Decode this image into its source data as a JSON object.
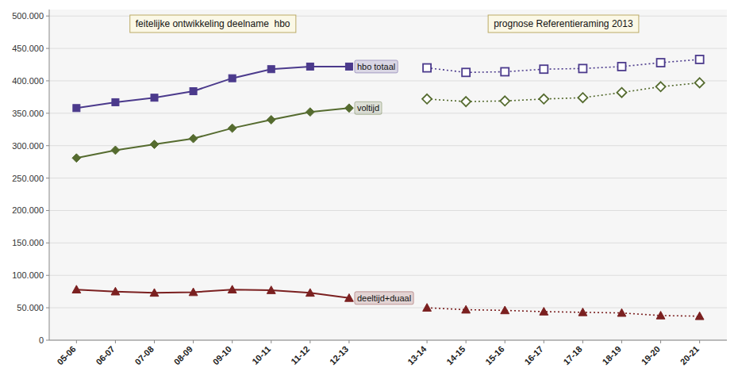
{
  "chart_data": {
    "type": "line",
    "annotations": [
      "feitelijke ontwikkeling deelname  hbo",
      "prognose Referentieraming 2013"
    ],
    "categories": [
      "05-06",
      "06-07",
      "07-08",
      "08-09",
      "09-10",
      "10-11",
      "11-12",
      "12-13",
      null,
      "13-14",
      "14-15",
      "15-16",
      "16-17",
      "17-18",
      "18-19",
      "19-20",
      "20-21"
    ],
    "series": [
      {
        "name": "hbo totaal",
        "color": "#4B3A8C",
        "marker": "square",
        "line_style": "solid",
        "values": [
          358000,
          367000,
          374000,
          384000,
          404000,
          418000,
          422000,
          422000,
          null,
          null,
          null,
          null,
          null,
          null,
          null,
          null,
          null
        ]
      },
      {
        "name": "voltijd",
        "color": "#556B2F",
        "marker": "diamond",
        "line_style": "solid",
        "values": [
          281000,
          293000,
          302000,
          311000,
          327000,
          340000,
          352000,
          358000,
          null,
          null,
          null,
          null,
          null,
          null,
          null,
          null,
          null
        ]
      },
      {
        "name": "deeltijd+duaal",
        "color": "#7B2020",
        "marker": "triangle",
        "line_style": "solid",
        "values": [
          78000,
          75000,
          73000,
          74000,
          78000,
          77000,
          73000,
          65000,
          null,
          null,
          null,
          null,
          null,
          null,
          null,
          null,
          null
        ]
      },
      {
        "color": "#4B3A8C",
        "marker": "square-open",
        "line_style": "dotted",
        "values": [
          null,
          null,
          null,
          null,
          null,
          null,
          null,
          null,
          null,
          420000,
          413000,
          414000,
          418000,
          419000,
          422000,
          428000,
          433000
        ]
      },
      {
        "color": "#556B2F",
        "marker": "diamond-open",
        "line_style": "dotted",
        "values": [
          null,
          null,
          null,
          null,
          null,
          null,
          null,
          null,
          null,
          372000,
          368000,
          369000,
          372000,
          374000,
          382000,
          391000,
          397000
        ]
      },
      {
        "color": "#7B2020",
        "marker": "triangle",
        "line_style": "dotted",
        "values": [
          null,
          null,
          null,
          null,
          null,
          null,
          null,
          null,
          null,
          50000,
          47000,
          46000,
          44000,
          43000,
          42000,
          38000,
          37000
        ]
      }
    ],
    "ylim": [
      0,
      510000
    ],
    "yticks": [
      0,
      {
        "value": 50000,
        "label": "50.000"
      },
      {
        "value": 100000,
        "label": "100.000"
      },
      {
        "value": 150000,
        "label": "150.000"
      },
      {
        "value": 200000,
        "label": "200.000"
      },
      {
        "value": 250000,
        "label": "250.000"
      },
      {
        "value": 300000,
        "label": "300.000"
      },
      {
        "value": 350000,
        "label": "350.000"
      },
      {
        "value": 400000,
        "label": "400.000"
      },
      {
        "value": 450000,
        "label": "450.000"
      },
      {
        "value": 500000,
        "label": "500.000"
      }
    ],
    "grid": true
  }
}
